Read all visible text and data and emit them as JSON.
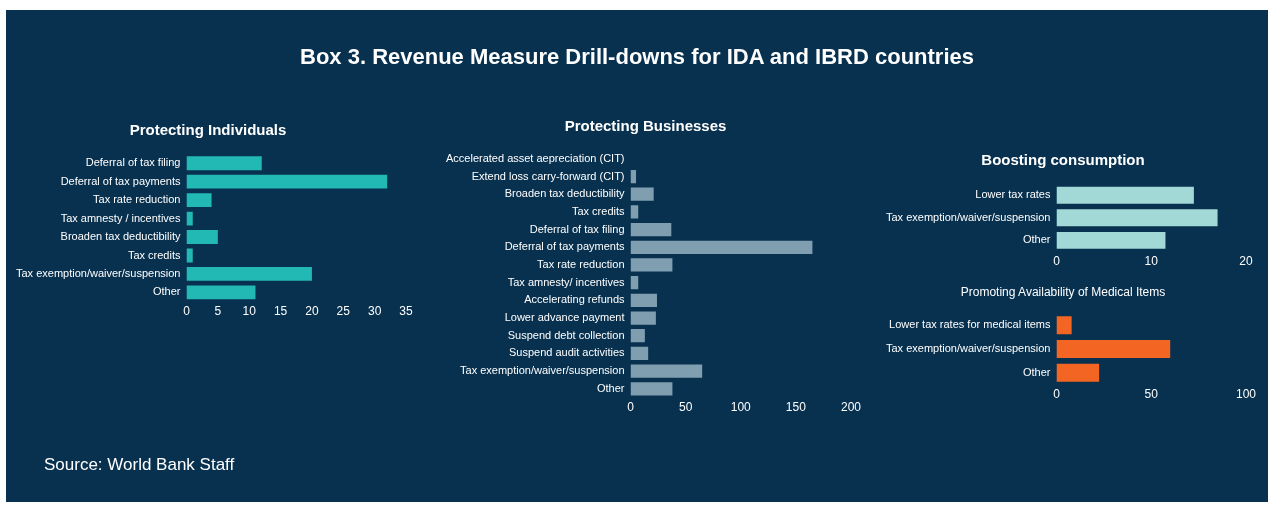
{
  "chart_data": [
    {
      "type": "bar",
      "orientation": "horizontal",
      "title": "Protecting Individuals",
      "annotations": [
        "Box 3. Revenue Measure Drill-downs for IDA and IBRD countries",
        "Source: World Bank Staff"
      ],
      "categories": [
        "Deferral of tax filing",
        "Deferral of tax payments",
        "Tax rate reduction",
        "Tax amnesty / incentives",
        "Broaden tax deductibility",
        "Tax credits",
        "Tax exemption/waiver/suspension",
        "Other"
      ],
      "values": [
        12,
        32,
        4,
        1,
        5,
        1,
        20,
        11
      ],
      "color": "#22b8b4",
      "xlim": [
        0,
        35
      ],
      "xticks": [
        0,
        5,
        10,
        15,
        20,
        25,
        30,
        35
      ]
    },
    {
      "type": "bar",
      "orientation": "horizontal",
      "title": "Protecting Businesses",
      "categories": [
        "Accelerated asset aepreciation (CIT)",
        "Extend loss carry-forward (CIT)",
        "Broaden tax deductibility",
        "Tax credits",
        "Deferral of tax filing",
        "Deferral of tax payments",
        "Tax rate reduction",
        "Tax amnesty/ incentives",
        "Accelerating refunds",
        "Lower advance payment",
        "Suspend debt collection",
        "Suspend audit activities",
        "Tax exemption/waiver/suspension",
        "Other"
      ],
      "values": [
        0,
        5,
        21,
        7,
        37,
        165,
        38,
        7,
        24,
        23,
        13,
        16,
        65,
        38
      ],
      "color": "#7f9fb0",
      "xlim": [
        0,
        200
      ],
      "xticks": [
        0,
        50,
        100,
        150,
        200
      ]
    },
    {
      "type": "bar",
      "orientation": "horizontal",
      "title": "Boosting consumption",
      "categories": [
        "Lower tax rates",
        "Tax exemption/waiver/suspension",
        "Other"
      ],
      "values": [
        14.5,
        17,
        11.5
      ],
      "color": "#a2d9d6",
      "xlim": [
        0,
        20
      ],
      "xticks": [
        0,
        10,
        20
      ]
    },
    {
      "type": "bar",
      "orientation": "horizontal",
      "title": "Promoting Availability of Medical Items",
      "categories": [
        "Lower tax rates for medical items",
        "Tax exemption/waiver/suspension",
        "Other"
      ],
      "values": [
        8,
        60,
        22.5
      ],
      "color": "#f26522",
      "xlim": [
        0,
        100
      ],
      "xticks": [
        0,
        50,
        100
      ]
    }
  ]
}
